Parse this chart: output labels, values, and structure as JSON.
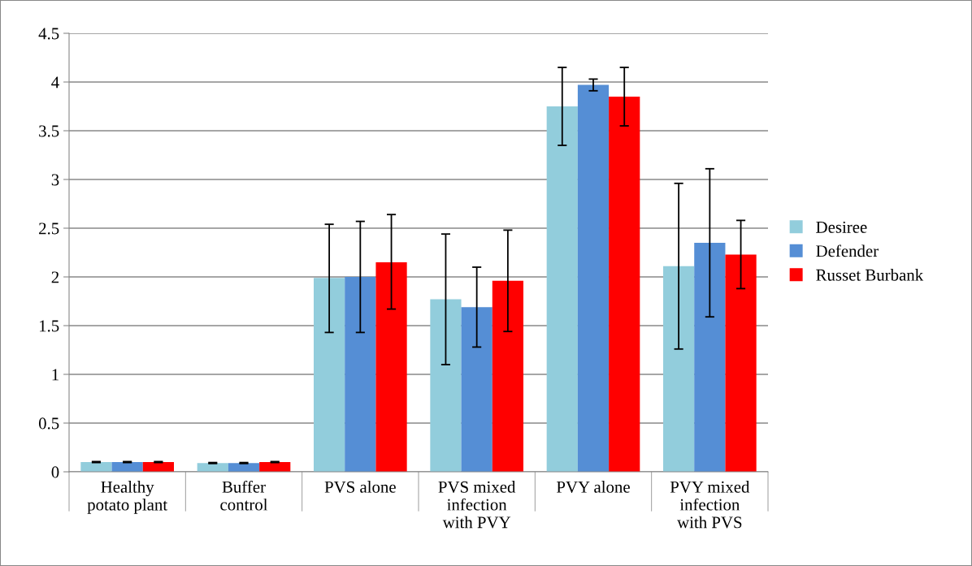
{
  "chart_data": {
    "type": "bar",
    "categories": [
      "Healthy\npotato plant",
      "Buffer\ncontrol",
      "PVS alone",
      "PVS mixed\ninfection\nwith PVY",
      "PVY alone",
      "PVY mixed\ninfection\nwith PVS"
    ],
    "series": [
      {
        "name": "Desiree",
        "color": "#92cddc",
        "values": [
          0.1,
          0.09,
          1.99,
          1.77,
          3.75,
          2.11
        ],
        "errors": [
          0.005,
          0.005,
          [
            1.43,
            2.54
          ],
          [
            1.1,
            2.44
          ],
          [
            3.35,
            4.15
          ],
          [
            1.26,
            2.96
          ]
        ]
      },
      {
        "name": "Defender",
        "color": "#558ed5",
        "values": [
          0.1,
          0.09,
          2.0,
          1.69,
          3.97,
          2.35
        ],
        "errors": [
          0.005,
          0.005,
          [
            1.43,
            2.57
          ],
          [
            1.28,
            2.1
          ],
          [
            3.91,
            4.03
          ],
          [
            1.59,
            3.11
          ]
        ]
      },
      {
        "name": "Russet Burbank",
        "color": "#ff0000",
        "values": [
          0.1,
          0.1,
          2.15,
          1.96,
          3.85,
          2.23
        ],
        "errors": [
          0.005,
          0.005,
          [
            1.67,
            2.64
          ],
          [
            1.44,
            2.48
          ],
          [
            3.55,
            4.15
          ],
          [
            1.88,
            2.58
          ]
        ]
      }
    ],
    "ylim": [
      0,
      4.5
    ],
    "yticks": [
      {
        "value": 0,
        "label": "0"
      },
      0.5,
      {
        "value": 1,
        "label": "1"
      },
      1.5,
      {
        "value": 2,
        "label": "2"
      },
      2.5,
      {
        "value": 3,
        "label": "3"
      },
      3.5,
      {
        "value": 4,
        "label": "4"
      },
      4.5
    ],
    "grid": "y",
    "legend": "right"
  }
}
